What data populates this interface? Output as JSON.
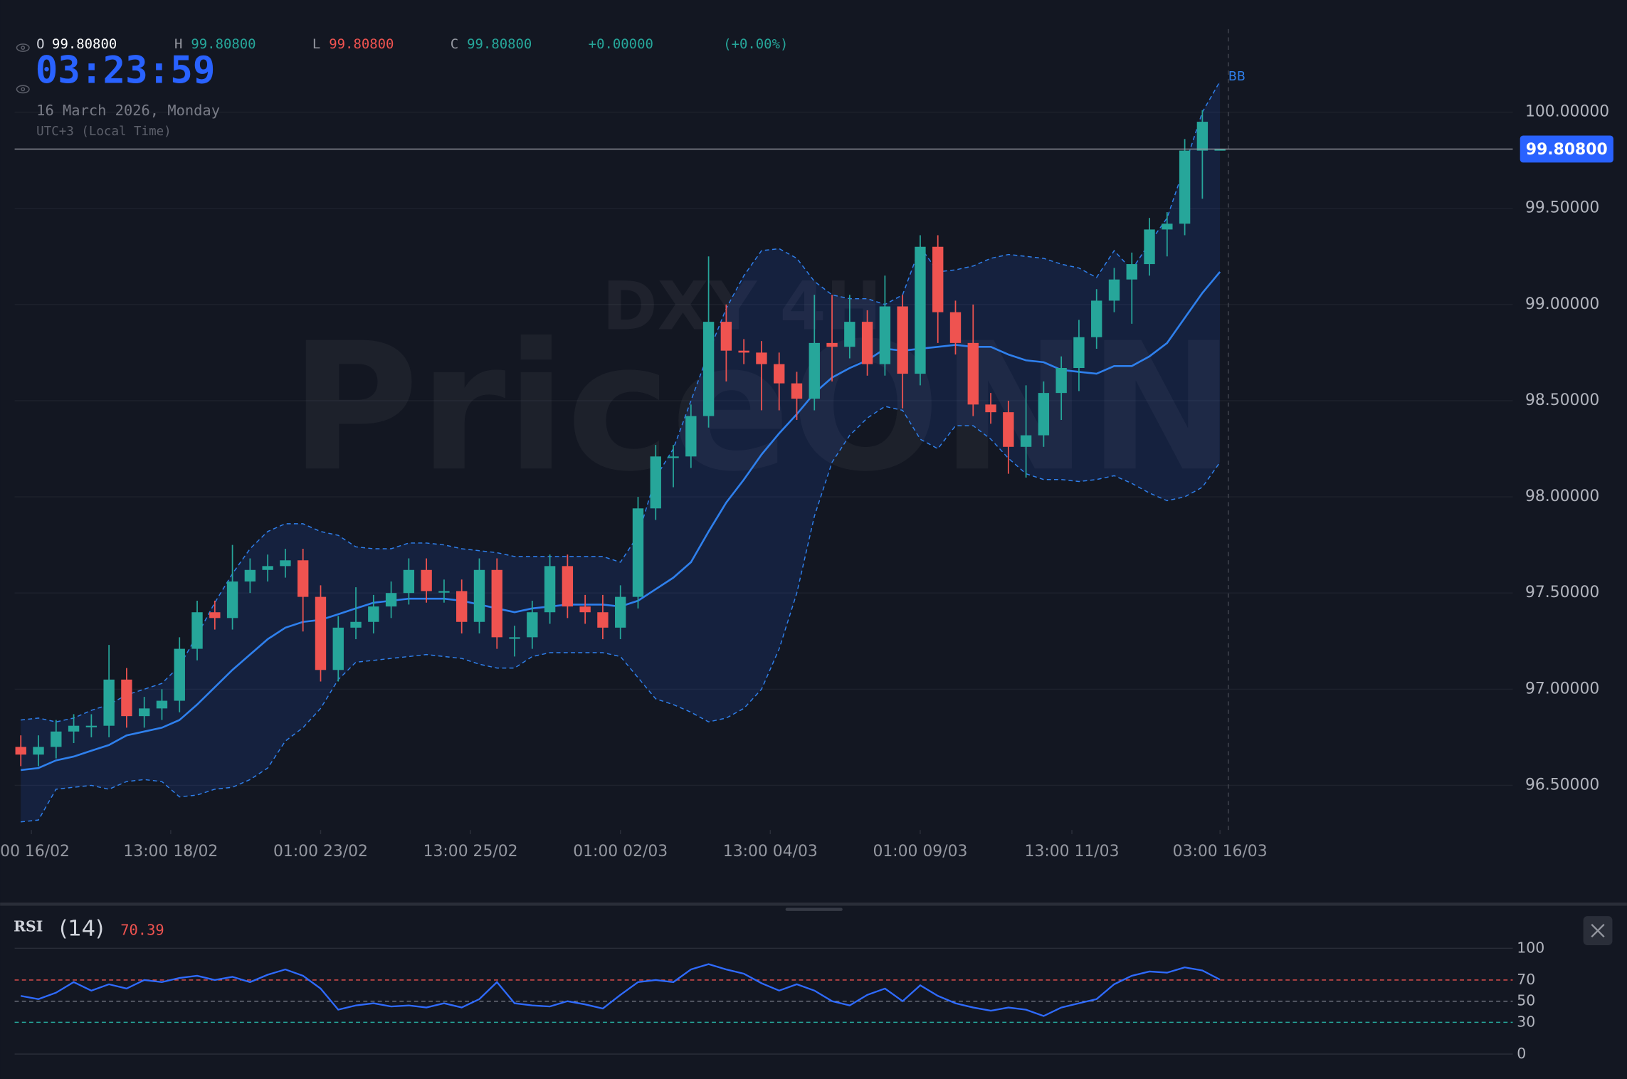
{
  "header": {
    "open_label": "O",
    "open": "99.80800",
    "high_label": "H",
    "high": "99.80800",
    "low_label": "L",
    "low": "99.80800",
    "close_label": "C",
    "close": "99.80800",
    "change": "+0.00000",
    "change_pct": "(+0.00%)",
    "clock": "03:23:59",
    "date": "16 March 2026, Monday",
    "timezone": "UTC+3 (Local Time)"
  },
  "chart_data": [
    {
      "type": "candlestick",
      "watermark": [
        "DXY 4H",
        "PriceONN"
      ],
      "open": [
        96.7,
        96.66,
        96.7,
        96.78,
        96.81,
        96.81,
        97.05,
        96.86,
        96.9,
        96.94,
        97.21,
        97.4,
        97.37,
        97.56,
        97.62,
        97.64,
        97.67,
        97.48,
        97.1,
        97.32,
        97.35,
        97.43,
        97.5,
        97.62,
        97.51,
        97.51,
        97.35,
        97.62,
        97.27,
        97.27,
        97.4,
        97.64,
        97.43,
        97.4,
        97.32,
        97.48,
        97.94,
        98.21,
        98.21,
        98.42,
        98.91,
        98.76,
        98.75,
        98.69,
        98.59,
        98.51,
        98.8,
        98.78,
        98.91,
        98.69,
        98.99,
        98.64,
        99.3,
        98.96,
        98.8,
        98.48,
        98.44,
        98.26,
        98.32,
        98.54,
        98.67,
        98.83,
        99.02,
        99.13,
        99.21,
        99.39,
        99.42,
        99.8,
        99.808
      ],
      "high": [
        96.76,
        96.76,
        96.84,
        96.87,
        96.87,
        97.23,
        97.11,
        96.96,
        97.0,
        97.27,
        97.46,
        97.46,
        97.75,
        97.68,
        97.7,
        97.73,
        97.73,
        97.54,
        97.38,
        97.53,
        97.49,
        97.56,
        97.68,
        97.68,
        97.57,
        97.57,
        97.68,
        97.68,
        97.33,
        97.46,
        97.7,
        97.7,
        97.49,
        97.49,
        97.54,
        98.0,
        98.27,
        98.27,
        98.48,
        99.25,
        99.0,
        98.82,
        98.81,
        98.75,
        98.65,
        99.05,
        99.05,
        99.05,
        98.97,
        99.15,
        99.05,
        99.36,
        99.36,
        99.02,
        99.0,
        98.54,
        98.5,
        98.58,
        98.6,
        98.73,
        98.92,
        99.08,
        99.19,
        99.27,
        99.45,
        99.48,
        99.86,
        100.01,
        99.808
      ],
      "low": [
        96.6,
        96.6,
        96.64,
        96.72,
        96.75,
        96.75,
        96.8,
        96.8,
        96.84,
        96.88,
        97.15,
        97.31,
        97.31,
        97.5,
        97.56,
        97.58,
        97.3,
        97.04,
        97.04,
        97.26,
        97.29,
        97.37,
        97.44,
        97.45,
        97.45,
        97.29,
        97.29,
        97.21,
        97.17,
        97.21,
        97.34,
        97.37,
        97.34,
        97.26,
        97.26,
        97.42,
        97.88,
        98.05,
        98.15,
        98.36,
        98.6,
        98.69,
        98.45,
        98.45,
        98.4,
        98.45,
        98.6,
        98.72,
        98.63,
        98.63,
        98.46,
        98.58,
        98.8,
        98.74,
        98.42,
        98.38,
        98.12,
        98.1,
        98.26,
        98.4,
        98.55,
        98.77,
        98.96,
        98.9,
        99.15,
        99.25,
        99.36,
        99.55,
        99.808
      ],
      "close": [
        96.66,
        96.7,
        96.78,
        96.81,
        96.81,
        97.05,
        96.86,
        96.9,
        96.94,
        97.21,
        97.4,
        97.37,
        97.56,
        97.62,
        97.64,
        97.67,
        97.48,
        97.1,
        97.32,
        97.35,
        97.43,
        97.5,
        97.62,
        97.51,
        97.51,
        97.35,
        97.62,
        97.27,
        97.27,
        97.4,
        97.64,
        97.43,
        97.4,
        97.32,
        97.48,
        97.94,
        98.21,
        98.21,
        98.42,
        98.91,
        98.76,
        98.75,
        98.69,
        98.59,
        98.51,
        98.8,
        98.78,
        98.91,
        98.69,
        98.99,
        98.64,
        99.3,
        98.96,
        98.8,
        98.48,
        98.44,
        98.26,
        98.32,
        98.54,
        98.67,
        98.83,
        99.02,
        99.13,
        99.21,
        99.39,
        99.42,
        99.8,
        99.95,
        99.808
      ],
      "colors": {
        "up": "#26a69a",
        "down": "#ef5350"
      },
      "bollinger": {
        "name": "BB",
        "color": "#2f80ed",
        "fill": "rgba(41,98,255,0.13)",
        "upper": [
          96.84,
          96.85,
          96.83,
          96.85,
          96.89,
          96.92,
          96.97,
          97.0,
          97.03,
          97.12,
          97.28,
          97.45,
          97.6,
          97.73,
          97.82,
          97.86,
          97.86,
          97.82,
          97.8,
          97.74,
          97.73,
          97.73,
          97.76,
          97.76,
          97.75,
          97.73,
          97.72,
          97.71,
          97.69,
          97.69,
          97.69,
          97.69,
          97.69,
          97.69,
          97.66,
          97.8,
          98.1,
          98.25,
          98.5,
          98.75,
          98.98,
          99.15,
          99.28,
          99.29,
          99.24,
          99.12,
          99.05,
          99.03,
          99.03,
          99.0,
          99.05,
          99.3,
          99.17,
          99.18,
          99.2,
          99.24,
          99.26,
          99.25,
          99.24,
          99.21,
          99.19,
          99.14,
          99.28,
          99.18,
          99.32,
          99.45,
          99.72,
          100.0,
          100.16
        ],
        "middle": [
          96.58,
          96.59,
          96.63,
          96.65,
          96.68,
          96.71,
          96.76,
          96.78,
          96.8,
          96.84,
          96.92,
          97.01,
          97.1,
          97.18,
          97.26,
          97.32,
          97.35,
          97.36,
          97.39,
          97.42,
          97.45,
          97.46,
          97.47,
          97.47,
          97.47,
          97.46,
          97.44,
          97.42,
          97.4,
          97.42,
          97.43,
          97.44,
          97.44,
          97.44,
          97.43,
          97.46,
          97.52,
          97.58,
          97.66,
          97.82,
          97.97,
          98.09,
          98.22,
          98.33,
          98.43,
          98.54,
          98.62,
          98.67,
          98.71,
          98.77,
          98.76,
          98.77,
          98.78,
          98.79,
          98.78,
          98.78,
          98.74,
          98.71,
          98.7,
          98.66,
          98.65,
          98.64,
          98.68,
          98.68,
          98.73,
          98.8,
          98.93,
          99.06,
          99.17
        ],
        "lower": [
          96.31,
          96.32,
          96.48,
          96.49,
          96.5,
          96.48,
          96.52,
          96.53,
          96.52,
          96.44,
          96.45,
          96.48,
          96.49,
          96.53,
          96.59,
          96.73,
          96.8,
          96.9,
          97.05,
          97.14,
          97.15,
          97.16,
          97.17,
          97.18,
          97.17,
          97.16,
          97.13,
          97.11,
          97.11,
          97.17,
          97.19,
          97.19,
          97.19,
          97.19,
          97.17,
          97.06,
          96.95,
          96.92,
          96.88,
          96.83,
          96.85,
          96.9,
          97.0,
          97.21,
          97.5,
          97.9,
          98.18,
          98.32,
          98.41,
          98.47,
          98.45,
          98.3,
          98.25,
          98.37,
          98.37,
          98.3,
          98.2,
          98.12,
          98.09,
          98.09,
          98.08,
          98.09,
          98.11,
          98.07,
          98.02,
          97.98,
          98.0,
          98.05,
          98.18
        ]
      },
      "last_price": {
        "value": 99.808,
        "label": "99.80800",
        "color": "#2962ff"
      },
      "ylim": [
        96.268,
        100.583
      ],
      "yticks": [
        {
          "value": 96.5,
          "label": "96.50000"
        },
        {
          "value": 97,
          "label": "97.00000"
        },
        {
          "value": 97.5,
          "label": "97.50000"
        },
        {
          "value": 98,
          "label": "98.00000"
        },
        {
          "value": 98.5,
          "label": "98.50000"
        },
        {
          "value": 99,
          "label": "99.00000"
        },
        {
          "value": 99.5,
          "label": "99.50000"
        },
        {
          "value": 100,
          "label": "100.00000"
        }
      ],
      "xlim": [
        -0.35,
        84.6
      ],
      "xticks": [
        {
          "value": 0.6,
          "label": "00 16/02"
        },
        {
          "value": 8.5,
          "label": "13:00 18/02"
        },
        {
          "value": 17,
          "label": "01:00 23/02"
        },
        {
          "value": 25.5,
          "label": "13:00 25/02"
        },
        {
          "value": 34,
          "label": "01:00 02/03"
        },
        {
          "value": 42.5,
          "label": "13:00 04/03"
        },
        {
          "value": 51,
          "label": "01:00 09/03"
        },
        {
          "value": 59.6,
          "label": "13:00 11/03"
        },
        {
          "value": 68,
          "label": "03:00 16/03"
        }
      ],
      "grid": true
    },
    {
      "type": "line",
      "title": "RSI",
      "subtitle": "(14)",
      "series": [
        {
          "name": "RSI",
          "color": "#2f6bff",
          "values": [
            55,
            52,
            58,
            68,
            60,
            66,
            62,
            70,
            68,
            72,
            74,
            70,
            73,
            68,
            75,
            80,
            74,
            62,
            42,
            46,
            48,
            45,
            46,
            44,
            48,
            44,
            52,
            68,
            48,
            46,
            45,
            50,
            47,
            43,
            56,
            68,
            70,
            68,
            80,
            85,
            80,
            76,
            67,
            60,
            66,
            60,
            50,
            46,
            56,
            62,
            50,
            65,
            55,
            48,
            44,
            41,
            44,
            42,
            36,
            44,
            48,
            52,
            66,
            74,
            78,
            77,
            82,
            79,
            70.39
          ]
        }
      ],
      "ylim": [
        0,
        100
      ],
      "yticks": [
        100,
        70,
        50,
        30,
        0
      ],
      "grid_colors": [
        "#2a2e39",
        "#ef5350",
        "#787b86",
        "#26a69a",
        "#2a2e39"
      ],
      "grid_dash": [
        false,
        true,
        true,
        true,
        false
      ],
      "xlim": [
        -0.35,
        84.6
      ]
    }
  ]
}
